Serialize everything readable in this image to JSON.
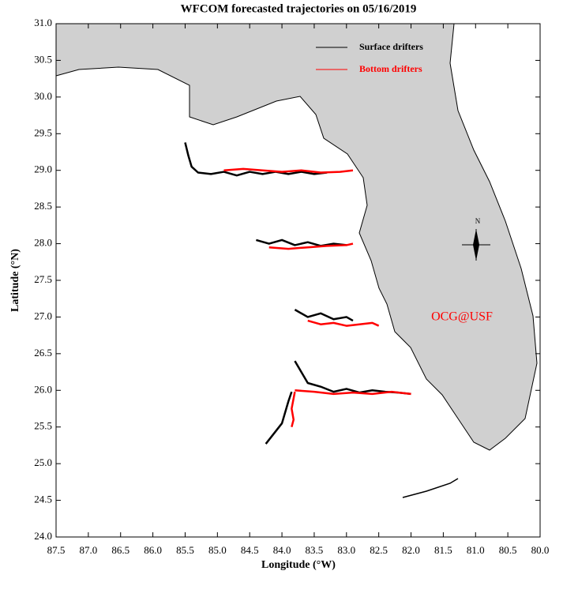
{
  "chart_data": {
    "type": "map",
    "title": "WFCOM forecasted trajectories on 05/16/2019",
    "xlabel": "Longitude (°W)",
    "ylabel": "Latitude (°N)",
    "annotations": [
      "OCG@USF",
      "N"
    ],
    "xlim": [
      87.5,
      80.0
    ],
    "ylim": [
      24.0,
      31.0
    ],
    "xticks": [
      87.5,
      {
        "value": 87,
        "label": "87.0"
      },
      86.5,
      {
        "value": 86,
        "label": "86.0"
      },
      85.5,
      {
        "value": 85,
        "label": "85.0"
      },
      84.5,
      {
        "value": 84,
        "label": "84.0"
      },
      83.5,
      {
        "value": 83,
        "label": "83.0"
      },
      82.5,
      {
        "value": 82,
        "label": "82.0"
      },
      81.5,
      {
        "value": 81,
        "label": "81.0"
      },
      80.5,
      {
        "value": 80,
        "label": "80.0"
      }
    ],
    "yticks": [
      {
        "value": 24,
        "label": "24.0"
      },
      24.5,
      {
        "value": 25,
        "label": "25.0"
      },
      25.5,
      {
        "value": 26,
        "label": "26.0"
      },
      26.5,
      {
        "value": 27,
        "label": "27.0"
      },
      27.5,
      {
        "value": 28,
        "label": "28.0"
      },
      28.5,
      {
        "value": 29,
        "label": "29.0"
      },
      29.5,
      {
        "value": 30,
        "label": "30.0"
      },
      30.5,
      {
        "value": 31,
        "label": "31.0"
      }
    ],
    "series": [
      {
        "name": "Surface drifters",
        "color": "#000000",
        "x": [
          85.5,
          85.45,
          85.4,
          85.3,
          85.1,
          84.9,
          84.7,
          84.5,
          84.3,
          84.1,
          83.9,
          83.7,
          83.5,
          83.3,
          null,
          84.4,
          84.2,
          84.0,
          83.8,
          83.6,
          83.4,
          83.2,
          83.0,
          null,
          83.8,
          83.6,
          83.4,
          83.2,
          83.0,
          82.9,
          null,
          83.8,
          83.6,
          83.4,
          83.2,
          83.0,
          82.8,
          82.6,
          82.4,
          82.2,
          82.0,
          null,
          84.25,
          84.0,
          83.9,
          83.85
        ],
        "y": [
          29.38,
          29.2,
          29.05,
          28.97,
          28.95,
          28.98,
          28.93,
          28.98,
          28.95,
          28.98,
          28.95,
          28.98,
          28.95,
          28.97,
          null,
          28.05,
          28.0,
          28.05,
          27.98,
          28.02,
          27.97,
          28.0,
          27.98,
          null,
          27.1,
          27.0,
          27.05,
          26.97,
          27.0,
          26.95,
          null,
          26.4,
          26.1,
          26.05,
          25.98,
          26.02,
          25.97,
          26.0,
          25.98,
          25.97,
          25.95,
          null,
          25.27,
          25.55,
          25.85,
          25.98
        ]
      },
      {
        "name": "Bottom drifters",
        "color": "#ff0000",
        "x": [
          84.9,
          84.6,
          84.3,
          84.0,
          83.7,
          83.4,
          83.1,
          82.9,
          null,
          84.2,
          83.9,
          83.6,
          83.3,
          83.0,
          82.9,
          null,
          83.6,
          83.4,
          83.2,
          83.0,
          82.8,
          82.6,
          82.5,
          null,
          83.8,
          83.5,
          83.2,
          82.9,
          82.6,
          82.3,
          82.0,
          null,
          83.8,
          83.85,
          83.82,
          83.85
        ],
        "y": [
          29.0,
          29.02,
          29.0,
          28.98,
          29.0,
          28.97,
          28.98,
          29.0,
          null,
          27.95,
          27.93,
          27.95,
          27.97,
          27.98,
          28.0,
          null,
          26.95,
          26.9,
          26.92,
          26.88,
          26.9,
          26.92,
          26.88,
          null,
          26.0,
          25.98,
          25.95,
          25.97,
          25.95,
          25.98,
          25.95,
          null,
          25.98,
          25.75,
          25.6,
          25.5
        ]
      }
    ]
  }
}
